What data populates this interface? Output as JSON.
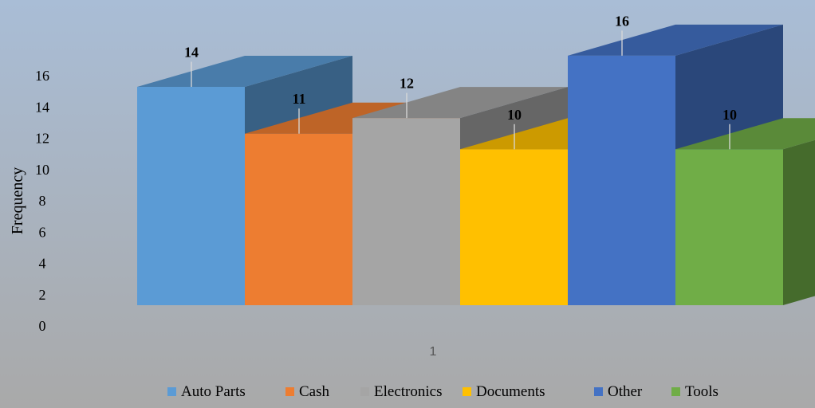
{
  "chart_data": {
    "type": "bar",
    "categories": [
      "1"
    ],
    "series": [
      {
        "name": "Auto Parts",
        "values": [
          14
        ],
        "color": "#5B9BD5"
      },
      {
        "name": "Cash",
        "values": [
          11
        ],
        "color": "#ED7D31"
      },
      {
        "name": "Electronics",
        "values": [
          12
        ],
        "color": "#A5A5A5"
      },
      {
        "name": "Documents",
        "values": [
          10
        ],
        "color": "#FFC000"
      },
      {
        "name": "Other",
        "values": [
          16
        ],
        "color": "#4472C4"
      },
      {
        "name": "Tools",
        "values": [
          10
        ],
        "color": "#70AD47"
      }
    ],
    "ylabel": "Frequency",
    "yticks": [
      0,
      2,
      4,
      6,
      8,
      10,
      12,
      14,
      16
    ],
    "ylim": [
      0,
      16
    ],
    "three_d": true,
    "grid": false,
    "legend": "bottom",
    "background": {
      "top": "#A9BDD6",
      "bottom": "#A9A9A9"
    }
  }
}
